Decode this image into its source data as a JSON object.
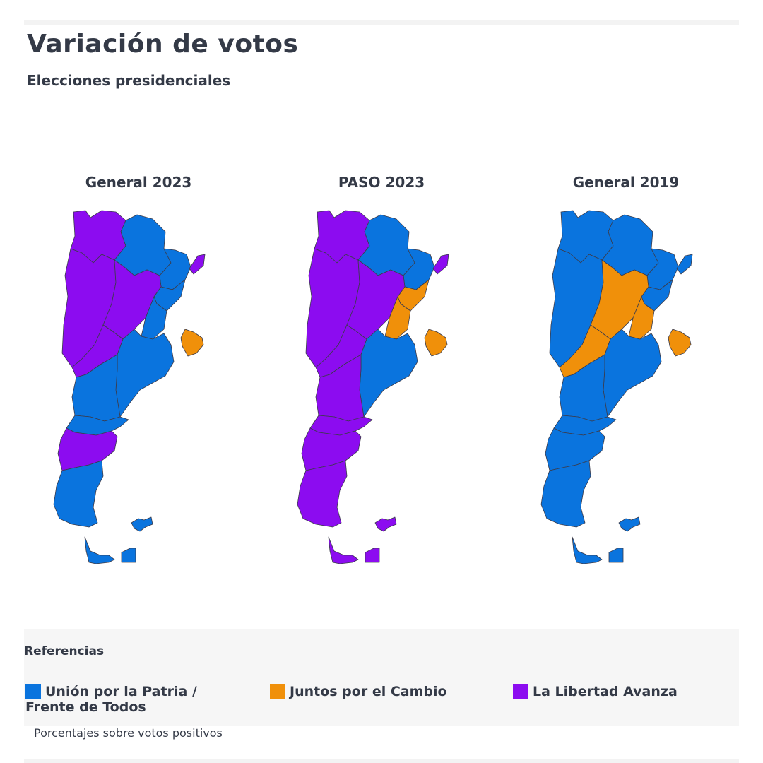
{
  "header": {
    "title": "Variación de votos",
    "subtitle": "Elecciones presidenciales"
  },
  "colors": {
    "union": "#0a74de",
    "juntos": "#f0900a",
    "libertad": "#8c0cf0"
  },
  "maps": [
    {
      "label": "General 2023",
      "winners": {
        "north_west": "libertad",
        "north_center": "union",
        "north_east": "union",
        "misiones": "libertad",
        "center_west": "libertad",
        "center": "libertad",
        "litoral": "union",
        "entre_rios": "union",
        "pampa_west": "libertad",
        "buenos_aires": "union",
        "la_pampa": "union",
        "neuquen_rionegro": "union",
        "chubut": "libertad",
        "santa_cruz": "union",
        "tierra_del_fuego": "union",
        "malvinas": "union",
        "uruguay_area": "juntos"
      }
    },
    {
      "label": "PASO 2023",
      "winners": {
        "north_west": "libertad",
        "north_center": "union",
        "north_east": "union",
        "misiones": "libertad",
        "center_west": "libertad",
        "center": "libertad",
        "litoral": "juntos",
        "entre_rios": "juntos",
        "pampa_west": "libertad",
        "buenos_aires": "union",
        "la_pampa": "libertad",
        "neuquen_rionegro": "libertad",
        "chubut": "libertad",
        "santa_cruz": "libertad",
        "tierra_del_fuego": "libertad",
        "malvinas": "libertad",
        "uruguay_area": "juntos"
      }
    },
    {
      "label": "General 2019",
      "winners": {
        "north_west": "union",
        "north_center": "union",
        "north_east": "union",
        "misiones": "union",
        "center_west": "union",
        "center": "juntos",
        "litoral": "union",
        "entre_rios": "juntos",
        "pampa_west": "juntos",
        "buenos_aires": "union",
        "la_pampa": "union",
        "neuquen_rionegro": "union",
        "chubut": "union",
        "santa_cruz": "union",
        "tierra_del_fuego": "union",
        "malvinas": "union",
        "uruguay_area": "juntos"
      }
    }
  ],
  "legend": {
    "title": "Referencias",
    "items": [
      {
        "key": "union",
        "label_line1": "Unión por la Patria /",
        "label_line2": "Frente de Todos"
      },
      {
        "key": "juntos",
        "label_line1": "Juntos por el Cambio",
        "label_line2": ""
      },
      {
        "key": "libertad",
        "label_line1": "La Libertad Avanza",
        "label_line2": ""
      }
    ]
  },
  "footnote": "Porcentajes sobre votos positivos"
}
